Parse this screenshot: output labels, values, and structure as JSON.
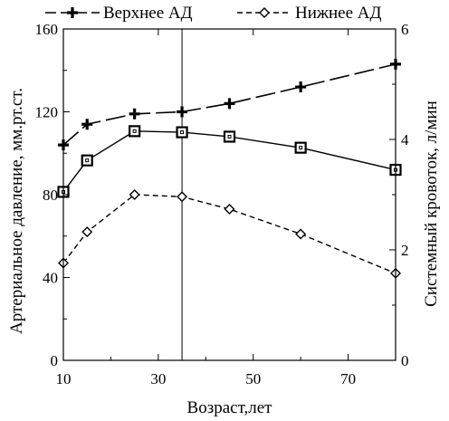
{
  "chart_data": {
    "type": "line",
    "title": "",
    "xlabel": "Возраст,лет",
    "ylabel_left": "Артериальное давление, мм.рт.ст.",
    "ylabel_right": "Системный кровоток, л/мин",
    "xlim": [
      10,
      80
    ],
    "ylim_left": [
      0,
      160
    ],
    "ylim_right": [
      0,
      6
    ],
    "x_ticks": [
      "10",
      "30",
      "50",
      "70"
    ],
    "y_left_ticks": [
      "0",
      "40",
      "80",
      "120",
      "160"
    ],
    "y_right_ticks": [
      "0",
      "2",
      "4",
      "6"
    ],
    "x_tick_values": [
      10,
      30,
      50,
      70
    ],
    "y_left_tick_values": [
      0,
      40,
      80,
      120,
      160
    ],
    "y_right_tick_values": [
      0,
      2,
      4,
      6
    ],
    "vertical_line_x": 35,
    "legend_position": "top",
    "grid": false,
    "series": [
      {
        "name": "Верхнее АД",
        "axis": "left",
        "marker": "plus",
        "line_style": "long-dash",
        "x": [
          10,
          15,
          25,
          35,
          45,
          60,
          80
        ],
        "values": [
          104,
          114,
          119,
          120,
          124,
          132,
          143
        ]
      },
      {
        "name": "Нижнее АД",
        "axis": "left",
        "marker": "diamond",
        "line_style": "dashed",
        "x": [
          10,
          15,
          25,
          35,
          45,
          60,
          80
        ],
        "values": [
          47,
          62,
          80,
          79,
          73,
          61,
          42
        ]
      },
      {
        "name": "",
        "axis": "right",
        "marker": "square",
        "line_style": "solid",
        "x": [
          10,
          15,
          25,
          35,
          45,
          60,
          80
        ],
        "values": [
          3.05,
          3.62,
          4.15,
          4.13,
          4.05,
          3.85,
          3.45
        ]
      }
    ]
  }
}
